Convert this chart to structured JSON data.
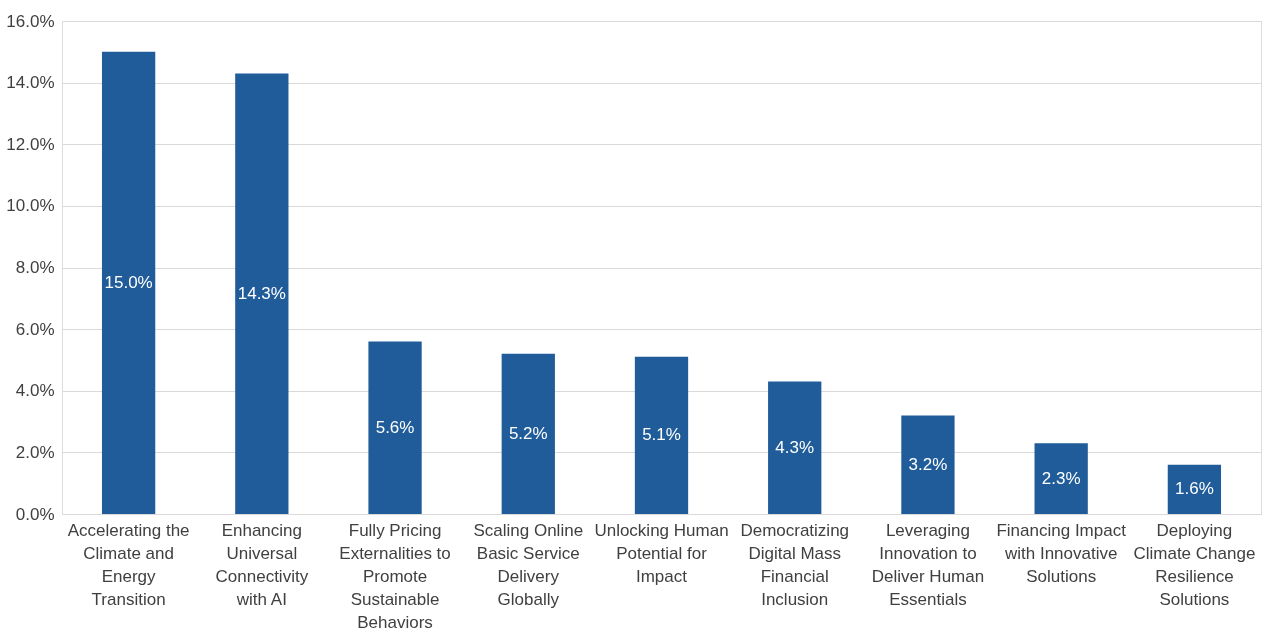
{
  "chart_data": {
    "type": "bar",
    "categories": [
      "Accelerating the Climate and Energy Transition",
      "Enhancing Universal Connectivity with AI",
      "Fully Pricing Externalities to Promote Sustainable Behaviors",
      "Scaling Online Basic Service Delivery Globally",
      "Unlocking Human Potential for Impact",
      "Democratizing Digital Mass Financial Inclusion",
      "Leveraging Innovation to Deliver Human Essentials",
      "Financing Impact with Innovative Solutions",
      "Deploying Climate Change Resilience Solutions"
    ],
    "values": [
      15.0,
      14.3,
      5.6,
      5.2,
      5.1,
      4.3,
      3.2,
      2.3,
      1.6
    ],
    "value_labels": [
      "15.0%",
      "14.3%",
      "5.6%",
      "5.2%",
      "5.1%",
      "4.3%",
      "3.2%",
      "2.3%",
      "1.6%"
    ],
    "color": "#1f5c99",
    "ylim": [
      0,
      16
    ],
    "yticks": [
      {
        "value": 0,
        "label": "0.0%"
      },
      {
        "value": 2,
        "label": "2.0%"
      },
      {
        "value": 4,
        "label": "4.0%"
      },
      {
        "value": 6,
        "label": "6.0%"
      },
      {
        "value": 8,
        "label": "8.0%"
      },
      {
        "value": 10,
        "label": "10.0%"
      },
      {
        "value": 12,
        "label": "12.0%"
      },
      {
        "value": 14,
        "label": "14.0%"
      },
      {
        "value": 16,
        "label": "16.0%"
      }
    ],
    "grid": "y"
  }
}
